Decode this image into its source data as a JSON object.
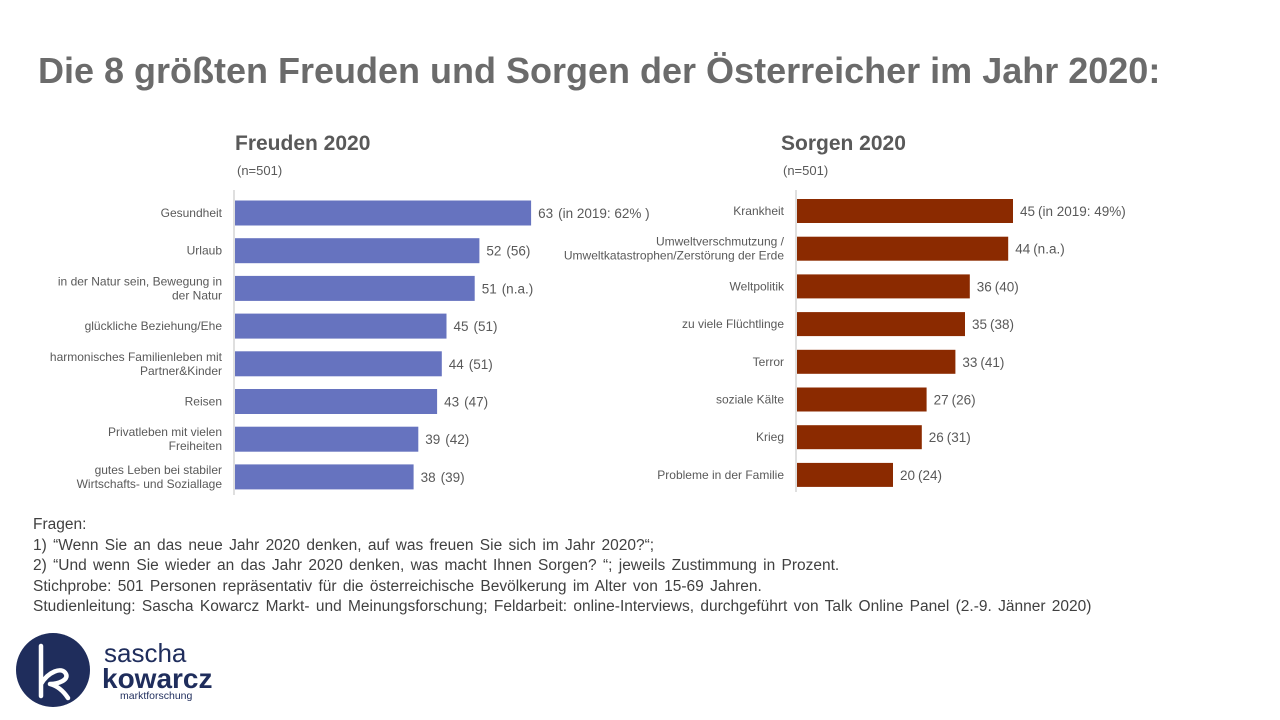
{
  "title": "Die 8 größten Freuden und Sorgen der Österreicher im Jahr 2020:",
  "chart_data": [
    {
      "type": "bar",
      "orientation": "horizontal",
      "title": "Freuden 2020",
      "subtitle": "(n=501)",
      "color": "#6673bf",
      "categories": [
        "Gesundheit",
        "Urlaub",
        "in der Natur sein, Bewegung in der Natur",
        "glückliche Beziehung/Ehe",
        "harmonisches Familienleben mit Partner&Kinder",
        "Reisen",
        "Privatleben mit vielen Freiheiten",
        "gutes Leben bei stabiler Wirtschafts- und Soziallage"
      ],
      "values": [
        63,
        52,
        51,
        45,
        44,
        43,
        39,
        38
      ],
      "annotations": [
        "(in 2019: 62% )",
        "(56)",
        "(n.a.)",
        "(51)",
        "(51)",
        "(47)",
        "(42)",
        "(39)"
      ],
      "xlim": [
        0,
        100
      ]
    },
    {
      "type": "bar",
      "orientation": "horizontal",
      "title": "Sorgen 2020",
      "subtitle": "(n=501)",
      "color": "#8b2a00",
      "categories": [
        "Krankheit",
        "Umweltverschmutzung / Umweltkatastrophen/Zerstörung der Erde",
        "Weltpolitik",
        "zu viele Flüchtlinge",
        "Terror",
        "soziale Kälte",
        "Krieg",
        "Probleme in der Familie"
      ],
      "values": [
        45,
        44,
        36,
        35,
        33,
        27,
        26,
        20
      ],
      "annotations": [
        "(in 2019: 49%)",
        "(n.a.)",
        "(40)",
        "(38)",
        "(41)",
        "(26)",
        "(31)",
        "(24)"
      ],
      "xlim": [
        0,
        100
      ]
    }
  ],
  "notes": [
    "Fragen:",
    "1) “Wenn Sie an das neue Jahr 2020 denken, auf was freuen Sie sich im Jahr 2020?“;",
    "2) “Und wenn Sie wieder an das Jahr 2020 denken, was macht Ihnen Sorgen? “; jeweils Zustimmung in Prozent.",
    "Stichprobe: 501 Personen repräsentativ für die österreichische Bevölkerung im Alter von 15-69 Jahren.",
    "Studienleitung: Sascha Kowarcz Markt- und Meinungsforschung; Feldarbeit: online-Interviews, durchgeführt von Talk Online Panel (2.-9. Jänner 2020)"
  ],
  "logo": {
    "line1": "sascha",
    "line2": "kowarcz",
    "line3": "marktforschung",
    "color": "#1f2d5c"
  }
}
